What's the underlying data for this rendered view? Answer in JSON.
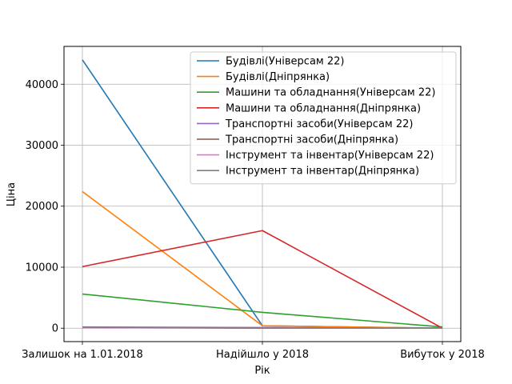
{
  "chart_data": {
    "type": "line",
    "title": "",
    "xlabel": "Рік",
    "ylabel": "Ціна",
    "categories": [
      "Залишок на 1.01.2018",
      "Надійшло у 2018",
      "Вибуток у 2018"
    ],
    "ylim": [
      -2200,
      46200
    ],
    "yticks": [
      0,
      10000,
      20000,
      30000,
      40000
    ],
    "yticklabels": [
      "0",
      "10000",
      "20000",
      "30000",
      "40000"
    ],
    "grid": true,
    "legend_position": "upper right",
    "series": [
      {
        "name": "Будівлі(Універсам 22)",
        "color": "#1f77b4",
        "values": [
          44000,
          400,
          0
        ]
      },
      {
        "name": "Будівлі(Дніпрянка)",
        "color": "#ff7f0e",
        "values": [
          22400,
          400,
          0
        ]
      },
      {
        "name": "Машини та обладнання(Універсам 22)",
        "color": "#2ca02c",
        "values": [
          5600,
          2600,
          200
        ]
      },
      {
        "name": "Машини та обладнання(Дніпрянка)",
        "color": "#d62728",
        "values": [
          10100,
          16000,
          0
        ]
      },
      {
        "name": "Транспортні засоби(Універсам 22)",
        "color": "#9467bd",
        "values": [
          200,
          100,
          0
        ]
      },
      {
        "name": "Транспортні засоби(Дніпрянка)",
        "color": "#8c564b",
        "values": [
          100,
          0,
          0
        ]
      },
      {
        "name": "Інструмент та інвентар(Універсам 22)",
        "color": "#e377c2",
        "values": [
          100,
          50,
          0
        ]
      },
      {
        "name": "Інструмент та інвентар(Дніпрянка)",
        "color": "#7f7f7f",
        "values": [
          150,
          50,
          0
        ]
      }
    ]
  }
}
